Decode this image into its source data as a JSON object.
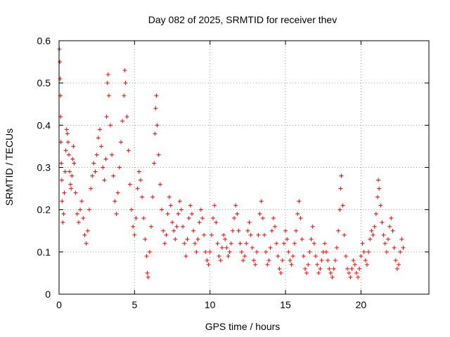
{
  "chart_data": {
    "type": "scatter",
    "title": "Day 082 of 2025, SRMTID for receiver thev",
    "xlabel": "GPS time / hours",
    "ylabel": "SRMTID / TECUs",
    "xlim": [
      0,
      24.5
    ],
    "ylim": [
      0,
      0.6
    ],
    "xticks": [
      0,
      5,
      10,
      15,
      20
    ],
    "yticks": [
      0,
      0.1,
      0.2,
      0.3,
      0.4,
      0.5,
      0.6
    ],
    "xtick_labels": [
      "0",
      "5",
      "10",
      "15",
      "20"
    ],
    "ytick_labels": [
      "0",
      "0.1",
      "0.2",
      "0.3",
      "0.4",
      "0.5",
      "0.6"
    ],
    "grid": true,
    "marker": "+",
    "colors": {
      "series": "#ff0000",
      "grid": "#a0a0a0",
      "axis": "#000000"
    },
    "series": [
      {
        "name": "SRMTID",
        "points": [
          [
            0.02,
            0.58
          ],
          [
            0.05,
            0.55
          ],
          [
            0.07,
            0.51
          ],
          [
            0.09,
            0.47
          ],
          [
            0.1,
            0.42
          ],
          [
            0.12,
            0.36
          ],
          [
            0.15,
            0.31
          ],
          [
            0.18,
            0.27
          ],
          [
            0.2,
            0.22
          ],
          [
            0.25,
            0.17
          ],
          [
            0.3,
            0.19
          ],
          [
            0.35,
            0.24
          ],
          [
            0.4,
            0.29
          ],
          [
            0.45,
            0.34
          ],
          [
            0.5,
            0.39
          ],
          [
            0.55,
            0.38
          ],
          [
            0.6,
            0.36
          ],
          [
            0.65,
            0.33
          ],
          [
            0.7,
            0.29
          ],
          [
            0.75,
            0.26
          ],
          [
            0.8,
            0.25
          ],
          [
            0.85,
            0.28
          ],
          [
            0.9,
            0.32
          ],
          [
            0.95,
            0.35
          ],
          [
            1.0,
            0.31
          ],
          [
            1.1,
            0.24
          ],
          [
            1.2,
            0.19
          ],
          [
            1.3,
            0.17
          ],
          [
            1.4,
            0.2
          ],
          [
            1.5,
            0.22
          ],
          [
            1.6,
            0.18
          ],
          [
            1.7,
            0.14
          ],
          [
            1.8,
            0.12
          ],
          [
            1.9,
            0.15
          ],
          [
            2.0,
            0.2
          ],
          [
            2.1,
            0.25
          ],
          [
            2.2,
            0.28
          ],
          [
            2.3,
            0.31
          ],
          [
            2.4,
            0.29
          ],
          [
            2.5,
            0.33
          ],
          [
            2.6,
            0.37
          ],
          [
            2.7,
            0.39
          ],
          [
            2.8,
            0.35
          ],
          [
            2.9,
            0.3
          ],
          [
            3.0,
            0.27
          ],
          [
            3.1,
            0.32
          ],
          [
            3.15,
            0.42
          ],
          [
            3.2,
            0.5
          ],
          [
            3.25,
            0.52
          ],
          [
            3.3,
            0.47
          ],
          [
            3.4,
            0.4
          ],
          [
            3.5,
            0.33
          ],
          [
            3.6,
            0.28
          ],
          [
            3.7,
            0.22
          ],
          [
            3.8,
            0.19
          ],
          [
            3.9,
            0.24
          ],
          [
            4.0,
            0.3
          ],
          [
            4.1,
            0.36
          ],
          [
            4.2,
            0.41
          ],
          [
            4.3,
            0.47
          ],
          [
            4.35,
            0.53
          ],
          [
            4.4,
            0.5
          ],
          [
            4.5,
            0.42
          ],
          [
            4.6,
            0.34
          ],
          [
            4.7,
            0.26
          ],
          [
            4.8,
            0.2
          ],
          [
            4.9,
            0.16
          ],
          [
            5.0,
            0.14
          ],
          [
            5.1,
            0.18
          ],
          [
            5.2,
            0.25
          ],
          [
            5.3,
            0.29
          ],
          [
            5.4,
            0.27
          ],
          [
            5.5,
            0.23
          ],
          [
            5.6,
            0.18
          ],
          [
            5.7,
            0.13
          ],
          [
            5.8,
            0.09
          ],
          [
            5.85,
            0.05
          ],
          [
            5.9,
            0.04
          ],
          [
            6.0,
            0.1
          ],
          [
            6.1,
            0.16
          ],
          [
            6.2,
            0.23
          ],
          [
            6.3,
            0.31
          ],
          [
            6.35,
            0.38
          ],
          [
            6.4,
            0.44
          ],
          [
            6.45,
            0.47
          ],
          [
            6.5,
            0.4
          ],
          [
            6.6,
            0.33
          ],
          [
            6.7,
            0.26
          ],
          [
            6.8,
            0.2
          ],
          [
            6.9,
            0.15
          ],
          [
            7.0,
            0.12
          ],
          [
            7.1,
            0.14
          ],
          [
            7.2,
            0.19
          ],
          [
            7.3,
            0.23
          ],
          [
            7.4,
            0.21
          ],
          [
            7.5,
            0.17
          ],
          [
            7.6,
            0.15
          ],
          [
            7.7,
            0.13
          ],
          [
            7.8,
            0.16
          ],
          [
            7.9,
            0.19
          ],
          [
            8.0,
            0.22
          ],
          [
            8.1,
            0.2
          ],
          [
            8.2,
            0.16
          ],
          [
            8.3,
            0.12
          ],
          [
            8.4,
            0.09
          ],
          [
            8.5,
            0.13
          ],
          [
            8.6,
            0.18
          ],
          [
            8.7,
            0.21
          ],
          [
            8.8,
            0.19
          ],
          [
            8.9,
            0.15
          ],
          [
            9.0,
            0.12
          ],
          [
            9.1,
            0.1
          ],
          [
            9.2,
            0.13
          ],
          [
            9.3,
            0.17
          ],
          [
            9.4,
            0.2
          ],
          [
            9.5,
            0.18
          ],
          [
            9.6,
            0.14
          ],
          [
            9.7,
            0.1
          ],
          [
            9.8,
            0.08
          ],
          [
            9.9,
            0.07
          ],
          [
            10.0,
            0.1
          ],
          [
            10.1,
            0.14
          ],
          [
            10.2,
            0.18
          ],
          [
            10.3,
            0.21
          ],
          [
            10.4,
            0.17
          ],
          [
            10.5,
            0.12
          ],
          [
            10.6,
            0.09
          ],
          [
            10.7,
            0.08
          ],
          [
            10.8,
            0.11
          ],
          [
            10.9,
            0.14
          ],
          [
            11.0,
            0.13
          ],
          [
            11.1,
            0.11
          ],
          [
            11.2,
            0.09
          ],
          [
            11.3,
            0.1
          ],
          [
            11.4,
            0.12
          ],
          [
            11.5,
            0.15
          ],
          [
            11.6,
            0.18
          ],
          [
            11.7,
            0.21
          ],
          [
            11.8,
            0.19
          ],
          [
            11.9,
            0.15
          ],
          [
            12.0,
            0.12
          ],
          [
            12.1,
            0.1
          ],
          [
            12.2,
            0.08
          ],
          [
            12.3,
            0.09
          ],
          [
            12.4,
            0.12
          ],
          [
            12.5,
            0.15
          ],
          [
            12.6,
            0.17
          ],
          [
            12.7,
            0.14
          ],
          [
            12.8,
            0.11
          ],
          [
            12.9,
            0.08
          ],
          [
            13.0,
            0.07
          ],
          [
            13.1,
            0.1
          ],
          [
            13.2,
            0.14
          ],
          [
            13.3,
            0.19
          ],
          [
            13.4,
            0.22
          ],
          [
            13.5,
            0.18
          ],
          [
            13.6,
            0.14
          ],
          [
            13.7,
            0.1
          ],
          [
            13.8,
            0.07
          ],
          [
            13.9,
            0.08
          ],
          [
            14.0,
            0.11
          ],
          [
            14.1,
            0.15
          ],
          [
            14.2,
            0.18
          ],
          [
            14.3,
            0.16
          ],
          [
            14.4,
            0.12
          ],
          [
            14.5,
            0.09
          ],
          [
            14.6,
            0.06
          ],
          [
            14.7,
            0.05
          ],
          [
            14.8,
            0.08
          ],
          [
            14.9,
            0.12
          ],
          [
            15.0,
            0.15
          ],
          [
            15.1,
            0.13
          ],
          [
            15.2,
            0.1
          ],
          [
            15.3,
            0.08
          ],
          [
            15.4,
            0.07
          ],
          [
            15.5,
            0.09
          ],
          [
            15.6,
            0.12
          ],
          [
            15.7,
            0.15
          ],
          [
            15.8,
            0.19
          ],
          [
            15.9,
            0.22
          ],
          [
            16.0,
            0.18
          ],
          [
            16.1,
            0.13
          ],
          [
            16.2,
            0.09
          ],
          [
            16.3,
            0.06
          ],
          [
            16.4,
            0.05
          ],
          [
            16.5,
            0.07
          ],
          [
            16.6,
            0.1
          ],
          [
            16.7,
            0.13
          ],
          [
            16.8,
            0.16
          ],
          [
            16.9,
            0.12
          ],
          [
            17.0,
            0.09
          ],
          [
            17.1,
            0.07
          ],
          [
            17.2,
            0.05
          ],
          [
            17.3,
            0.06
          ],
          [
            17.4,
            0.08
          ],
          [
            17.5,
            0.1
          ],
          [
            17.6,
            0.12
          ],
          [
            17.7,
            0.1
          ],
          [
            17.8,
            0.08
          ],
          [
            17.9,
            0.06
          ],
          [
            18.0,
            0.05
          ],
          [
            18.1,
            0.04
          ],
          [
            18.2,
            0.06
          ],
          [
            18.3,
            0.08
          ],
          [
            18.4,
            0.11
          ],
          [
            18.5,
            0.15
          ],
          [
            18.6,
            0.2
          ],
          [
            18.65,
            0.25
          ],
          [
            18.7,
            0.28
          ],
          [
            18.8,
            0.21
          ],
          [
            18.9,
            0.14
          ],
          [
            19.0,
            0.09
          ],
          [
            19.1,
            0.06
          ],
          [
            19.2,
            0.05
          ],
          [
            19.3,
            0.04
          ],
          [
            19.4,
            0.06
          ],
          [
            19.5,
            0.08
          ],
          [
            19.6,
            0.07
          ],
          [
            19.7,
            0.05
          ],
          [
            19.8,
            0.04
          ],
          [
            19.9,
            0.06
          ],
          [
            20.0,
            0.09
          ],
          [
            20.1,
            0.12
          ],
          [
            20.2,
            0.1
          ],
          [
            20.3,
            0.08
          ],
          [
            20.4,
            0.07
          ],
          [
            20.5,
            0.1
          ],
          [
            20.6,
            0.13
          ],
          [
            20.7,
            0.15
          ],
          [
            20.8,
            0.14
          ],
          [
            20.9,
            0.16
          ],
          [
            21.0,
            0.19
          ],
          [
            21.1,
            0.23
          ],
          [
            21.15,
            0.27
          ],
          [
            21.2,
            0.25
          ],
          [
            21.3,
            0.21
          ],
          [
            21.4,
            0.17
          ],
          [
            21.5,
            0.14
          ],
          [
            21.6,
            0.12
          ],
          [
            21.7,
            0.1
          ],
          [
            21.8,
            0.13
          ],
          [
            21.9,
            0.16
          ],
          [
            22.0,
            0.18
          ],
          [
            22.1,
            0.15
          ],
          [
            22.2,
            0.11
          ],
          [
            22.3,
            0.08
          ],
          [
            22.4,
            0.06
          ],
          [
            22.5,
            0.07
          ],
          [
            22.6,
            0.1
          ],
          [
            22.7,
            0.13
          ],
          [
            22.8,
            0.11
          ]
        ]
      }
    ]
  }
}
